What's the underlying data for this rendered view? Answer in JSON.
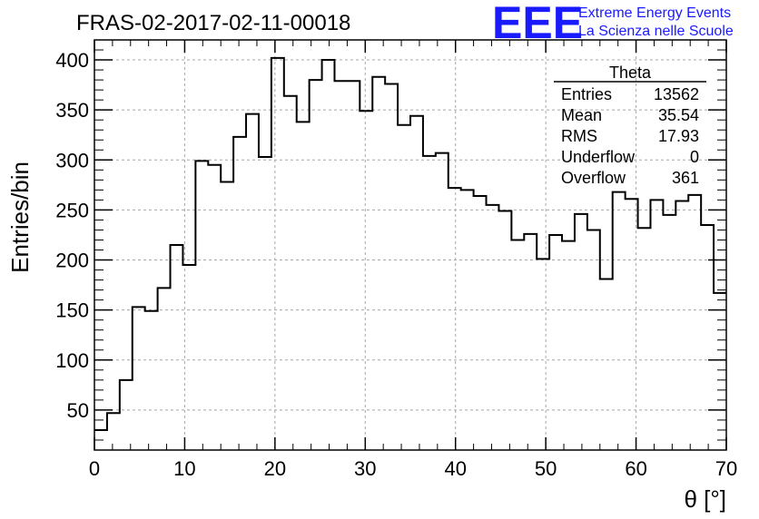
{
  "header": {
    "title": "FRAS-02-2017-02-11-00018",
    "logo_text": "EEE",
    "logo_line1": "Extreme Energy Events",
    "logo_line2": "La Scienza nelle Scuole"
  },
  "stats_box": {
    "title": "Theta",
    "rows": [
      {
        "label": "Entries",
        "value": "13562"
      },
      {
        "label": "Mean",
        "value": "35.54"
      },
      {
        "label": "RMS",
        "value": "17.93"
      },
      {
        "label": "Underflow",
        "value": "0"
      },
      {
        "label": "Overflow",
        "value": "361"
      }
    ]
  },
  "chart_data": {
    "type": "histogram",
    "title": "FRAS-02-2017-02-11-00018",
    "xlabel": "θ [°]",
    "ylabel": "Entries/bin",
    "xlim": [
      0,
      70
    ],
    "ylim": [
      10,
      420
    ],
    "grid": true,
    "x_ticks": [
      0,
      10,
      20,
      30,
      40,
      50,
      60,
      70
    ],
    "y_ticks": [
      50,
      100,
      150,
      200,
      250,
      300,
      350,
      400
    ],
    "bin_edges": [
      0,
      1.4,
      2.8,
      4.2,
      5.6,
      7,
      8.4,
      9.8,
      11.2,
      12.6,
      14,
      15.4,
      16.8,
      18.2,
      19.6,
      21,
      22.4,
      23.8,
      25.2,
      26.6,
      28,
      29.4,
      30.8,
      32.2,
      33.6,
      35,
      36.4,
      37.8,
      39.2,
      40.6,
      42,
      43.4,
      44.8,
      46.2,
      47.6,
      49,
      50.4,
      51.8,
      53.2,
      54.6,
      56,
      57.4,
      58.8,
      60.2,
      61.6,
      63,
      64.4,
      65.8,
      67.2,
      68.6,
      70
    ],
    "values": [
      30,
      47,
      80,
      153,
      149,
      172,
      215,
      195,
      299,
      295,
      278,
      323,
      346,
      303,
      402,
      364,
      338,
      380,
      400,
      379,
      379,
      349,
      383,
      376,
      335,
      344,
      304,
      307,
      272,
      270,
      264,
      255,
      249,
      220,
      226,
      201,
      225,
      219,
      246,
      230,
      181,
      268,
      261,
      232,
      260,
      245,
      259,
      265,
      235,
      167
    ]
  }
}
